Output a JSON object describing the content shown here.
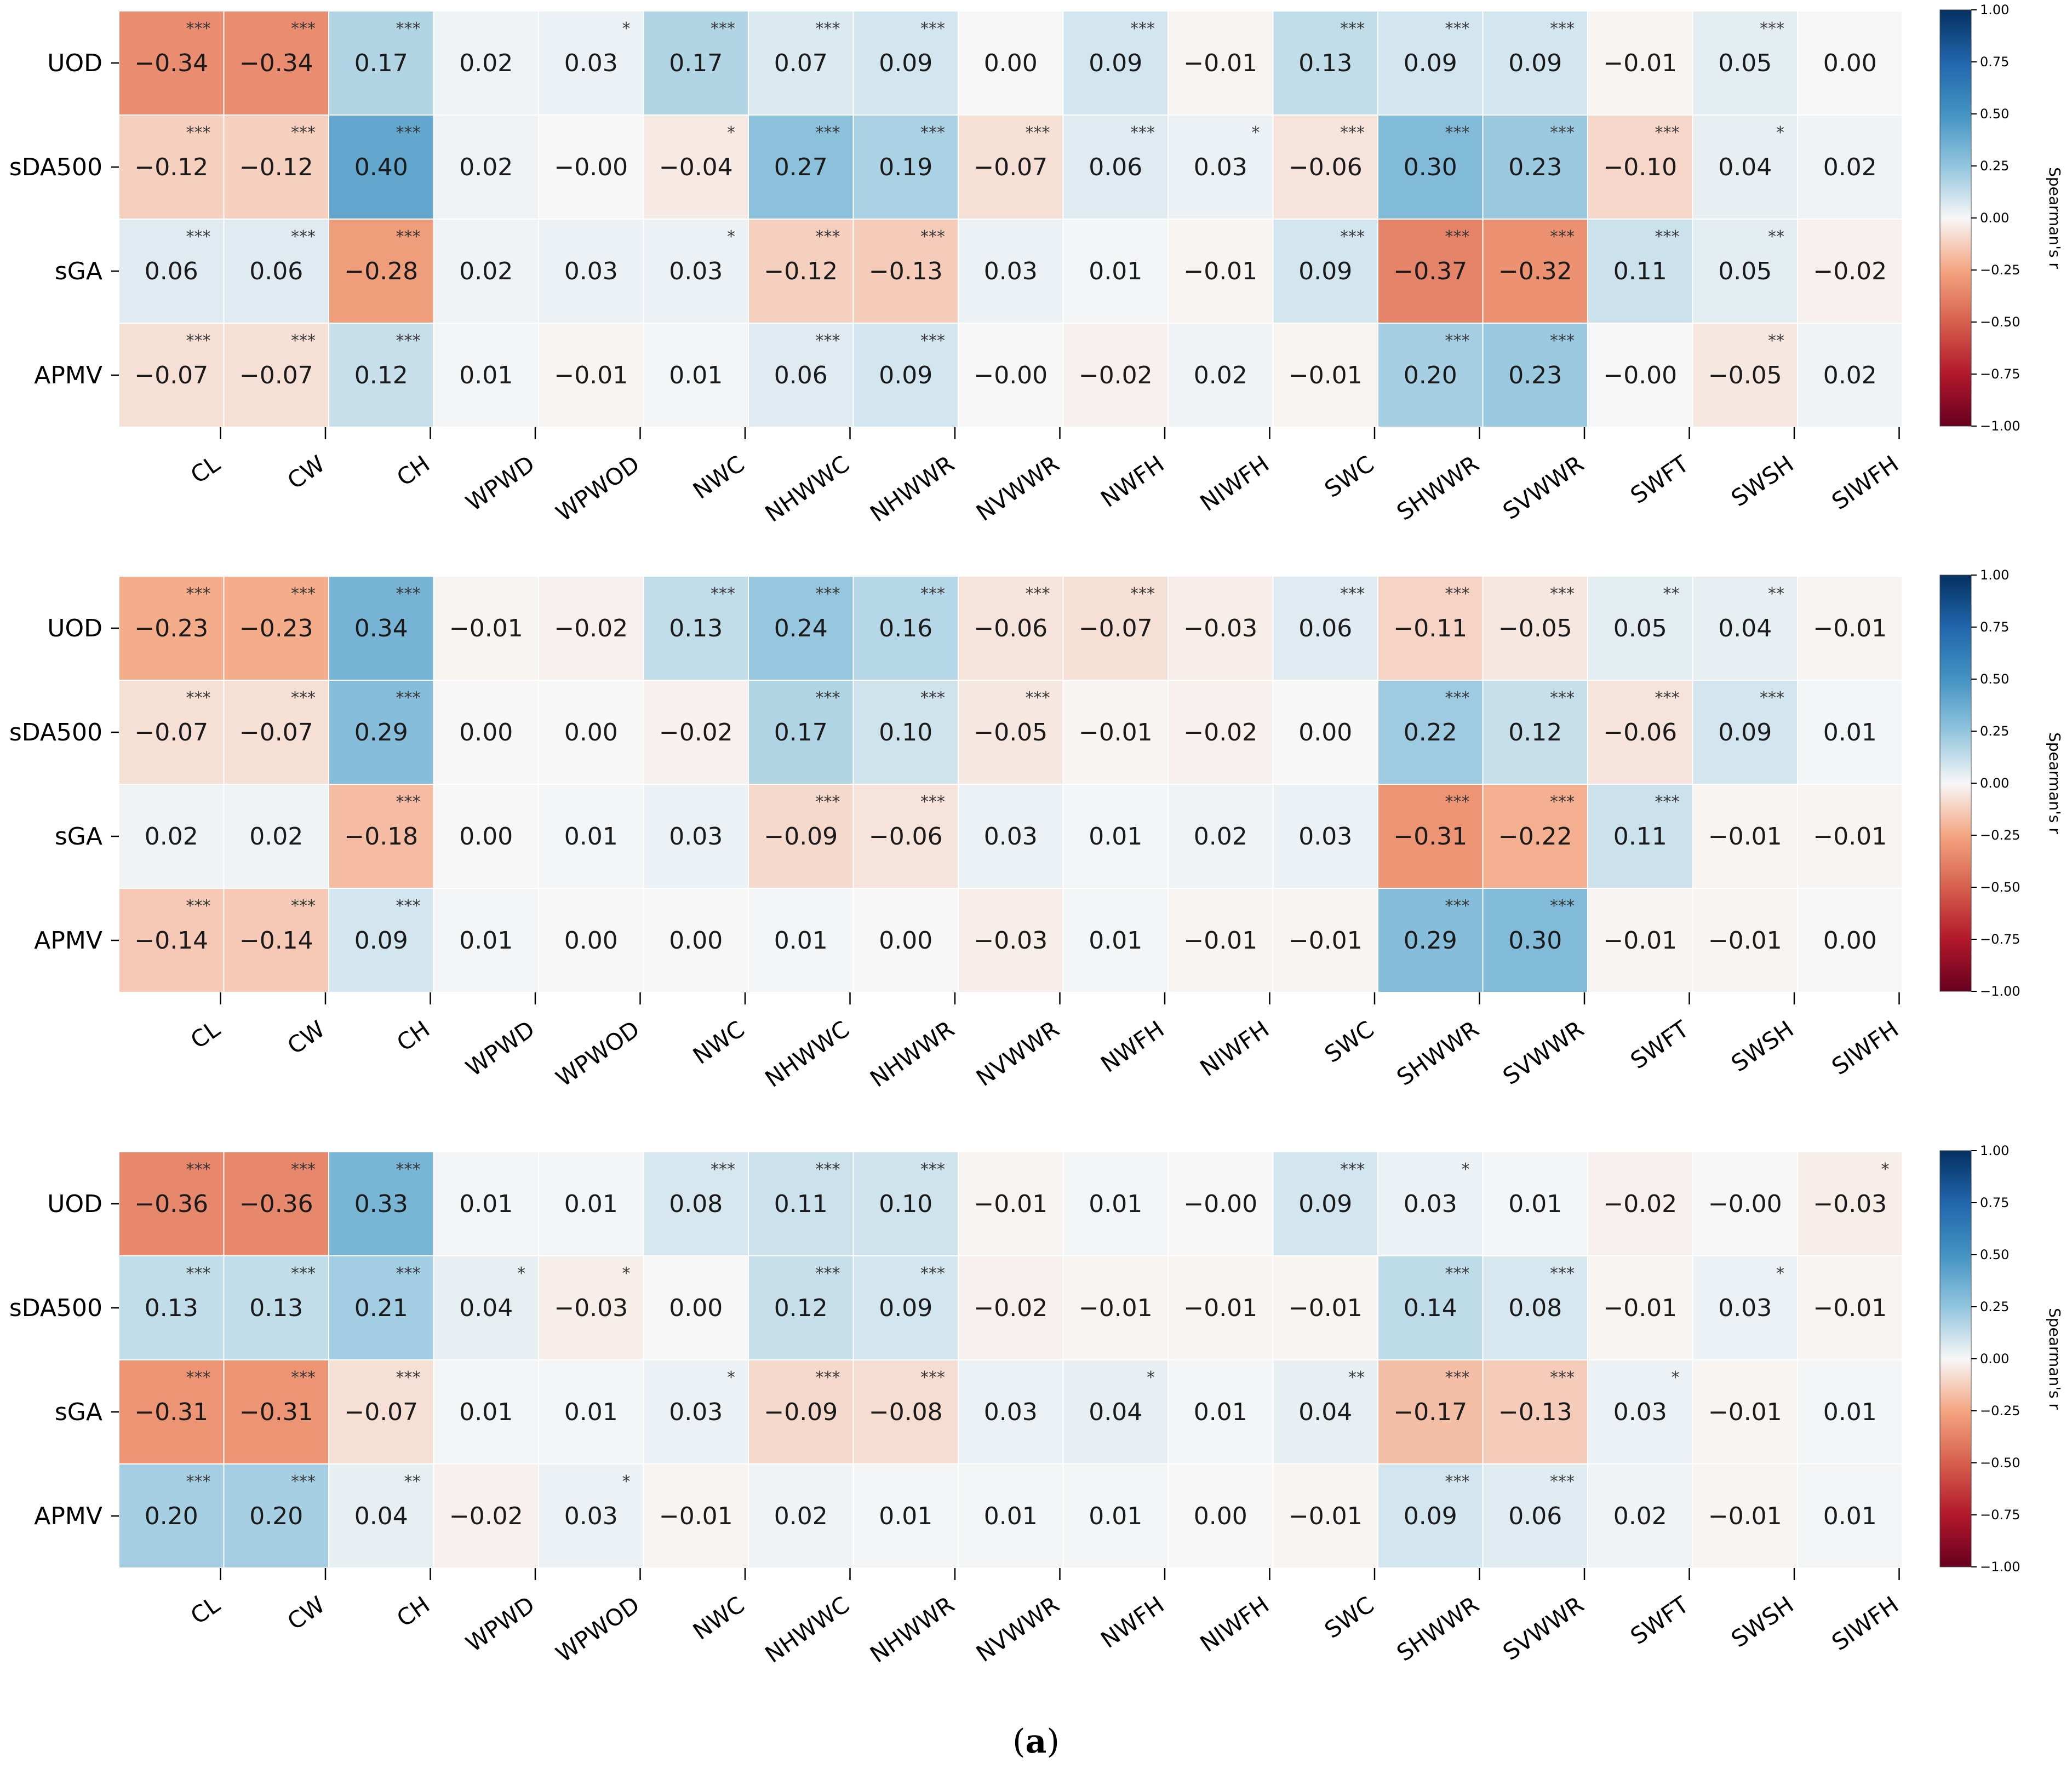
{
  "figure_caption": {
    "open": "(",
    "letter": "a",
    "close": ")"
  },
  "colorbar": {
    "label": "Spearman's r",
    "ticks": [
      "1.00",
      "0.75",
      "0.50",
      "0.25",
      "0.00",
      "−0.25",
      "−0.50",
      "−0.75",
      "−1.00"
    ],
    "colormap": "RdBu",
    "range": [
      -1,
      1
    ]
  },
  "chart_data": [
    {
      "type": "heatmap",
      "rows": [
        "UOD",
        "sDA500",
        "sGA",
        "APMV"
      ],
      "columns": [
        "CL",
        "CW",
        "CH",
        "WPWD",
        "WPWOD",
        "NWC",
        "NHWWC",
        "NHWWR",
        "NVWWR",
        "NWFH",
        "NIWFH",
        "SWC",
        "SHWWR",
        "SVWWR",
        "SWFT",
        "SWSH",
        "SIWFH"
      ],
      "values": [
        [
          -0.34,
          -0.34,
          0.17,
          0.02,
          0.03,
          0.17,
          0.07,
          0.09,
          0.0,
          0.09,
          -0.01,
          0.13,
          0.09,
          0.09,
          -0.01,
          0.05,
          0.0
        ],
        [
          -0.12,
          -0.12,
          0.4,
          0.02,
          -0.0,
          -0.04,
          0.27,
          0.19,
          -0.07,
          0.06,
          0.03,
          -0.06,
          0.3,
          0.23,
          -0.1,
          0.04,
          0.02
        ],
        [
          0.06,
          0.06,
          -0.28,
          0.02,
          0.03,
          0.03,
          -0.12,
          -0.13,
          0.03,
          0.01,
          -0.01,
          0.09,
          -0.37,
          -0.32,
          0.11,
          0.05,
          -0.02
        ],
        [
          -0.07,
          -0.07,
          0.12,
          0.01,
          -0.01,
          0.01,
          0.06,
          0.09,
          -0.0,
          -0.02,
          0.02,
          -0.01,
          0.2,
          0.23,
          -0.0,
          -0.05,
          0.02
        ]
      ],
      "labels": [
        [
          "−0.34",
          "−0.34",
          "0.17",
          "0.02",
          "0.03",
          "0.17",
          "0.07",
          "0.09",
          "0.00",
          "0.09",
          "−0.01",
          "0.13",
          "0.09",
          "0.09",
          "−0.01",
          "0.05",
          "0.00"
        ],
        [
          "−0.12",
          "−0.12",
          "0.40",
          "0.02",
          "−0.00",
          "−0.04",
          "0.27",
          "0.19",
          "−0.07",
          "0.06",
          "0.03",
          "−0.06",
          "0.30",
          "0.23",
          "−0.10",
          "0.04",
          "0.02"
        ],
        [
          "0.06",
          "0.06",
          "−0.28",
          "0.02",
          "0.03",
          "0.03",
          "−0.12",
          "−0.13",
          "0.03",
          "0.01",
          "−0.01",
          "0.09",
          "−0.37",
          "−0.32",
          "0.11",
          "0.05",
          "−0.02"
        ],
        [
          "−0.07",
          "−0.07",
          "0.12",
          "0.01",
          "−0.01",
          "0.01",
          "0.06",
          "0.09",
          "−0.00",
          "−0.02",
          "0.02",
          "−0.01",
          "0.20",
          "0.23",
          "−0.00",
          "−0.05",
          "0.02"
        ]
      ],
      "significance": [
        [
          "***",
          "***",
          "***",
          "",
          "*",
          "***",
          "***",
          "***",
          "",
          "***",
          "",
          "***",
          "***",
          "***",
          "",
          "***",
          ""
        ],
        [
          "***",
          "***",
          "***",
          "",
          "",
          "*",
          "***",
          "***",
          "***",
          "***",
          "*",
          "***",
          "***",
          "***",
          "***",
          "*",
          ""
        ],
        [
          "***",
          "***",
          "***",
          "",
          "",
          "*",
          "***",
          "***",
          "",
          "",
          "",
          "***",
          "***",
          "***",
          "***",
          "**",
          ""
        ],
        [
          "***",
          "***",
          "***",
          "",
          "",
          "",
          "***",
          "***",
          "",
          "",
          "",
          "",
          "***",
          "***",
          "",
          "**",
          ""
        ]
      ]
    },
    {
      "type": "heatmap",
      "rows": [
        "UOD",
        "sDA500",
        "sGA",
        "APMV"
      ],
      "columns": [
        "CL",
        "CW",
        "CH",
        "WPWD",
        "WPWOD",
        "NWC",
        "NHWWC",
        "NHWWR",
        "NVWWR",
        "NWFH",
        "NIWFH",
        "SWC",
        "SHWWR",
        "SVWWR",
        "SWFT",
        "SWSH",
        "SIWFH"
      ],
      "values": [
        [
          -0.23,
          -0.23,
          0.34,
          -0.01,
          -0.02,
          0.13,
          0.24,
          0.16,
          -0.06,
          -0.07,
          -0.03,
          0.06,
          -0.11,
          -0.05,
          0.05,
          0.04,
          -0.01
        ],
        [
          -0.07,
          -0.07,
          0.29,
          0.0,
          0.0,
          -0.02,
          0.17,
          0.1,
          -0.05,
          -0.01,
          -0.02,
          0.0,
          0.22,
          0.12,
          -0.06,
          0.09,
          0.01
        ],
        [
          0.02,
          0.02,
          -0.18,
          0.0,
          0.01,
          0.03,
          -0.09,
          -0.06,
          0.03,
          0.01,
          0.02,
          0.03,
          -0.31,
          -0.22,
          0.11,
          -0.01,
          -0.01
        ],
        [
          -0.14,
          -0.14,
          0.09,
          0.01,
          0.0,
          0.0,
          0.01,
          0.0,
          -0.03,
          0.01,
          -0.01,
          -0.01,
          0.29,
          0.3,
          -0.01,
          -0.01,
          0.0
        ]
      ],
      "labels": [
        [
          "−0.23",
          "−0.23",
          "0.34",
          "−0.01",
          "−0.02",
          "0.13",
          "0.24",
          "0.16",
          "−0.06",
          "−0.07",
          "−0.03",
          "0.06",
          "−0.11",
          "−0.05",
          "0.05",
          "0.04",
          "−0.01"
        ],
        [
          "−0.07",
          "−0.07",
          "0.29",
          "0.00",
          "0.00",
          "−0.02",
          "0.17",
          "0.10",
          "−0.05",
          "−0.01",
          "−0.02",
          "0.00",
          "0.22",
          "0.12",
          "−0.06",
          "0.09",
          "0.01"
        ],
        [
          "0.02",
          "0.02",
          "−0.18",
          "0.00",
          "0.01",
          "0.03",
          "−0.09",
          "−0.06",
          "0.03",
          "0.01",
          "0.02",
          "0.03",
          "−0.31",
          "−0.22",
          "0.11",
          "−0.01",
          "−0.01"
        ],
        [
          "−0.14",
          "−0.14",
          "0.09",
          "0.01",
          "0.00",
          "0.00",
          "0.01",
          "0.00",
          "−0.03",
          "0.01",
          "−0.01",
          "−0.01",
          "0.29",
          "0.30",
          "−0.01",
          "−0.01",
          "0.00"
        ]
      ],
      "significance": [
        [
          "***",
          "***",
          "***",
          "",
          "",
          "***",
          "***",
          "***",
          "***",
          "***",
          "",
          "***",
          "***",
          "***",
          "**",
          "**",
          ""
        ],
        [
          "***",
          "***",
          "***",
          "",
          "",
          "",
          "***",
          "***",
          "***",
          "",
          "",
          "",
          "***",
          "***",
          "***",
          "***",
          ""
        ],
        [
          "",
          "",
          "***",
          "",
          "",
          "",
          "***",
          "***",
          "",
          "",
          "",
          "",
          "***",
          "***",
          "***",
          "",
          ""
        ],
        [
          "***",
          "***",
          "***",
          "",
          "",
          "",
          "",
          "",
          "",
          "",
          "",
          "",
          "***",
          "***",
          "",
          "",
          ""
        ]
      ]
    },
    {
      "type": "heatmap",
      "rows": [
        "UOD",
        "sDA500",
        "sGA",
        "APMV"
      ],
      "columns": [
        "CL",
        "CW",
        "CH",
        "WPWD",
        "WPWOD",
        "NWC",
        "NHWWC",
        "NHWWR",
        "NVWWR",
        "NWFH",
        "NIWFH",
        "SWC",
        "SHWWR",
        "SVWWR",
        "SWFT",
        "SWSH",
        "SIWFH"
      ],
      "values": [
        [
          -0.36,
          -0.36,
          0.33,
          0.01,
          0.01,
          0.08,
          0.11,
          0.1,
          -0.01,
          0.01,
          -0.0,
          0.09,
          0.03,
          0.01,
          -0.02,
          -0.0,
          -0.03
        ],
        [
          0.13,
          0.13,
          0.21,
          0.04,
          -0.03,
          0.0,
          0.12,
          0.09,
          -0.02,
          -0.01,
          -0.01,
          -0.01,
          0.14,
          0.08,
          -0.01,
          0.03,
          -0.01
        ],
        [
          -0.31,
          -0.31,
          -0.07,
          0.01,
          0.01,
          0.03,
          -0.09,
          -0.08,
          0.03,
          0.04,
          0.01,
          0.04,
          -0.17,
          -0.13,
          0.03,
          -0.01,
          0.01
        ],
        [
          0.2,
          0.2,
          0.04,
          -0.02,
          0.03,
          -0.01,
          0.02,
          0.01,
          0.01,
          0.01,
          0.0,
          -0.01,
          0.09,
          0.06,
          0.02,
          -0.01,
          0.01
        ]
      ],
      "labels": [
        [
          "−0.36",
          "−0.36",
          "0.33",
          "0.01",
          "0.01",
          "0.08",
          "0.11",
          "0.10",
          "−0.01",
          "0.01",
          "−0.00",
          "0.09",
          "0.03",
          "0.01",
          "−0.02",
          "−0.00",
          "−0.03"
        ],
        [
          "0.13",
          "0.13",
          "0.21",
          "0.04",
          "−0.03",
          "0.00",
          "0.12",
          "0.09",
          "−0.02",
          "−0.01",
          "−0.01",
          "−0.01",
          "0.14",
          "0.08",
          "−0.01",
          "0.03",
          "−0.01"
        ],
        [
          "−0.31",
          "−0.31",
          "−0.07",
          "0.01",
          "0.01",
          "0.03",
          "−0.09",
          "−0.08",
          "0.03",
          "0.04",
          "0.01",
          "0.04",
          "−0.17",
          "−0.13",
          "0.03",
          "−0.01",
          "0.01"
        ],
        [
          "0.20",
          "0.20",
          "0.04",
          "−0.02",
          "0.03",
          "−0.01",
          "0.02",
          "0.01",
          "0.01",
          "0.01",
          "0.00",
          "−0.01",
          "0.09",
          "0.06",
          "0.02",
          "−0.01",
          "0.01"
        ]
      ],
      "significance": [
        [
          "***",
          "***",
          "***",
          "",
          "",
          "***",
          "***",
          "***",
          "",
          "",
          "",
          "***",
          "*",
          "",
          "",
          "",
          "*"
        ],
        [
          "***",
          "***",
          "***",
          "*",
          "*",
          "",
          "***",
          "***",
          "",
          "",
          "",
          "",
          "***",
          "***",
          "",
          "*",
          ""
        ],
        [
          "***",
          "***",
          "***",
          "",
          "",
          "*",
          "***",
          "***",
          "",
          "*",
          "",
          "**",
          "***",
          "***",
          "*",
          "",
          ""
        ],
        [
          "***",
          "***",
          "**",
          "",
          "*",
          "",
          "",
          "",
          "",
          "",
          "",
          "",
          "***",
          "***",
          "",
          "",
          ""
        ]
      ]
    }
  ]
}
